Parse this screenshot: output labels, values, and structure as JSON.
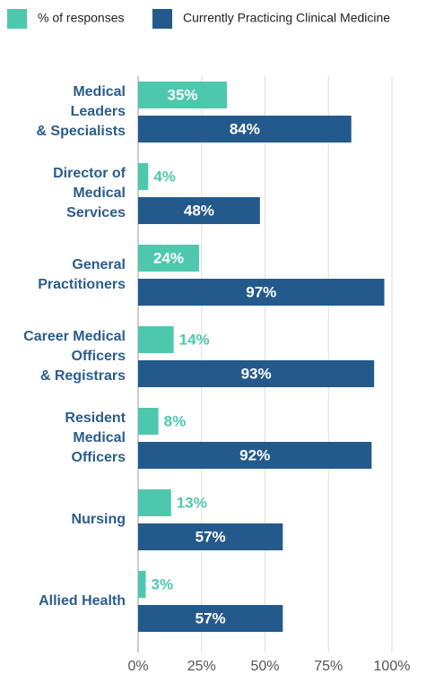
{
  "chart_data": {
    "type": "bar",
    "orientation": "horizontal",
    "categories": [
      [
        "Medical",
        "Leaders",
        "& Specialists"
      ],
      [
        "Director of",
        "Medical",
        "Services"
      ],
      [
        "General",
        "Practitioners"
      ],
      [
        "Career Medical",
        "Officers",
        "& Registrars"
      ],
      [
        "Resident",
        "Medical",
        "Officers"
      ],
      [
        "Nursing"
      ],
      [
        "Allied Health"
      ]
    ],
    "series": [
      {
        "name": "% of responses",
        "color": "#4ec8ad",
        "values": [
          35,
          4,
          24,
          14,
          8,
          13,
          3
        ],
        "value_labels": [
          "35%",
          "4%",
          "24%",
          "14%",
          "8%",
          "13%",
          "3%"
        ]
      },
      {
        "name": "Currently Practicing Clinical Medicine",
        "color": "#245a8b",
        "values": [
          84,
          48,
          97,
          93,
          92,
          57,
          57
        ],
        "value_labels": [
          "84%",
          "48%",
          "97%",
          "93%",
          "92%",
          "57%",
          "57%"
        ]
      }
    ],
    "xlim": [
      0,
      100
    ],
    "xticks": [
      {
        "value": 0,
        "label": "0%"
      },
      {
        "value": 25,
        "label": "25%"
      },
      {
        "value": 50,
        "label": "50%"
      },
      {
        "value": 75,
        "label": "75%"
      },
      {
        "value": 100,
        "label": "100%"
      }
    ],
    "grid": true,
    "legend": "top"
  }
}
